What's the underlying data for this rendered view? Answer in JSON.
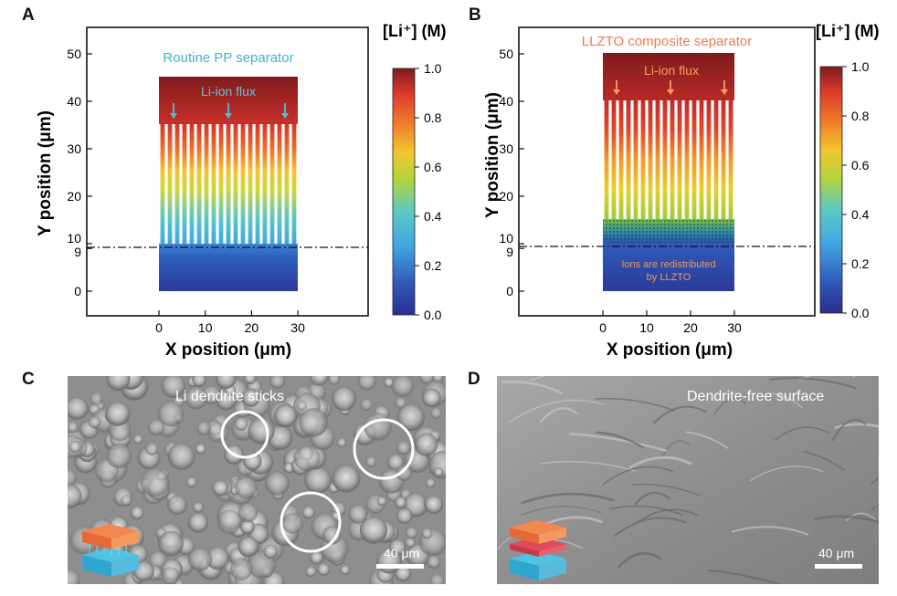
{
  "panel_a": {
    "letter": "A",
    "title": "Routine PP separator",
    "flux_label": "Li-ion flux",
    "xlabel": "X position (μm)",
    "ylabel": "Y position (μm)",
    "colorbar_label": "[Li⁺] (M)",
    "x_ticks": [
      "0",
      "10",
      "20",
      "30"
    ],
    "y_ticks": [
      "0",
      "9",
      "10",
      "20",
      "30",
      "40",
      "50"
    ],
    "colorbar_ticks": [
      "0.0",
      "0.2",
      "0.4",
      "0.6",
      "0.8",
      "1.0"
    ]
  },
  "panel_b": {
    "letter": "B",
    "title": "LLZTO composite separator",
    "flux_label": "Li-ion flux",
    "note_line1": "Ions are redistributed",
    "note_line2": "by LLZTO",
    "xlabel": "X position (μm)",
    "ylabel": "Y position (μm)",
    "colorbar_label": "[Li⁺] (M)",
    "x_ticks": [
      "0",
      "10",
      "20",
      "30"
    ],
    "y_ticks": [
      "0",
      "9",
      "10",
      "20",
      "30",
      "40",
      "50"
    ],
    "colorbar_ticks": [
      "0.0",
      "0.2",
      "0.4",
      "0.6",
      "0.8",
      "1.0"
    ]
  },
  "panel_c": {
    "letter": "C",
    "caption": "Li dendrite sticks",
    "scale": "40 μm"
  },
  "panel_d": {
    "letter": "D",
    "caption": "Dendrite-free surface",
    "scale": "40 μm"
  },
  "colors": {
    "title_a": "#3bb6c8",
    "title_b": "#f07a4a",
    "flux_arrow_a": "#48c4d8",
    "flux_arrow_b": "#f5a25a",
    "note_b": "#e89a63"
  }
}
